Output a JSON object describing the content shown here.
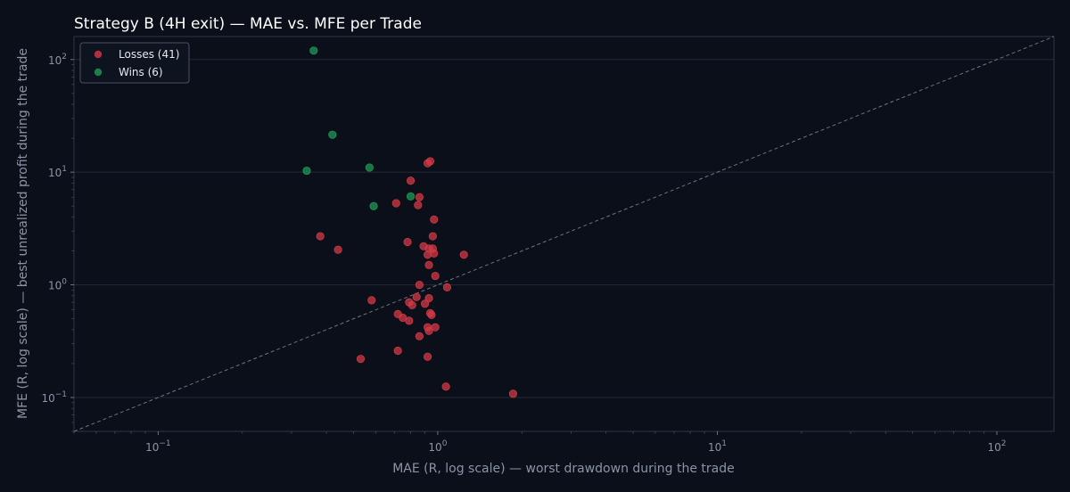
{
  "chart_data": {
    "type": "scatter",
    "title": "Strategy B (4H exit) — MAE vs. MFE per Trade",
    "xlabel": "MAE (R, log scale) — worst drawdown during the trade",
    "ylabel": "MFE (R, log scale) — best unrealized profit during the trade",
    "xscale": "log",
    "yscale": "log",
    "xlim": [
      0.05,
      160
    ],
    "ylim": [
      0.05,
      160
    ],
    "x_ticks": [
      {
        "value": 0.1,
        "base": "10",
        "exp": "−1"
      },
      {
        "value": 1,
        "base": "10",
        "exp": "0"
      },
      {
        "value": 10,
        "base": "10",
        "exp": "1"
      },
      {
        "value": 100,
        "base": "10",
        "exp": "2"
      }
    ],
    "y_ticks": [
      {
        "value": 0.1,
        "base": "10",
        "exp": "−1"
      },
      {
        "value": 1,
        "base": "10",
        "exp": "0"
      },
      {
        "value": 10,
        "base": "10",
        "exp": "1"
      },
      {
        "value": 100,
        "base": "10",
        "exp": "2"
      }
    ],
    "grid": true,
    "legend_position": "top-left",
    "reference_line": "y = x",
    "series": [
      {
        "name": "Losses (41)",
        "color": "#d63a46",
        "points": [
          [
            0.94,
            12.5
          ],
          [
            0.92,
            12.0
          ],
          [
            0.8,
            8.4
          ],
          [
            0.86,
            6.0
          ],
          [
            0.71,
            5.3
          ],
          [
            0.85,
            5.1
          ],
          [
            0.97,
            3.8
          ],
          [
            0.38,
            2.7
          ],
          [
            0.96,
            2.7
          ],
          [
            0.78,
            2.4
          ],
          [
            0.89,
            2.2
          ],
          [
            0.96,
            2.1
          ],
          [
            0.93,
            2.1
          ],
          [
            0.44,
            2.05
          ],
          [
            0.97,
            1.9
          ],
          [
            0.92,
            1.85
          ],
          [
            1.24,
            1.85
          ],
          [
            0.93,
            1.5
          ],
          [
            0.98,
            1.2
          ],
          [
            0.86,
            1.0
          ],
          [
            1.08,
            0.95
          ],
          [
            0.84,
            0.78
          ],
          [
            0.93,
            0.76
          ],
          [
            0.58,
            0.73
          ],
          [
            0.79,
            0.7
          ],
          [
            0.9,
            0.68
          ],
          [
            0.81,
            0.66
          ],
          [
            0.72,
            0.55
          ],
          [
            0.94,
            0.56
          ],
          [
            0.95,
            0.54
          ],
          [
            0.75,
            0.51
          ],
          [
            0.79,
            0.48
          ],
          [
            0.98,
            0.42
          ],
          [
            0.92,
            0.42
          ],
          [
            0.93,
            0.39
          ],
          [
            0.86,
            0.35
          ],
          [
            0.72,
            0.26
          ],
          [
            0.92,
            0.23
          ],
          [
            0.53,
            0.22
          ],
          [
            1.07,
            0.125
          ],
          [
            1.86,
            0.108
          ]
        ]
      },
      {
        "name": "Wins (6)",
        "color": "#1f9d55",
        "points": [
          [
            0.36,
            120
          ],
          [
            0.42,
            21.5
          ],
          [
            0.34,
            10.3
          ],
          [
            0.57,
            11.0
          ],
          [
            0.8,
            6.1
          ],
          [
            0.59,
            5.0
          ]
        ]
      }
    ]
  }
}
